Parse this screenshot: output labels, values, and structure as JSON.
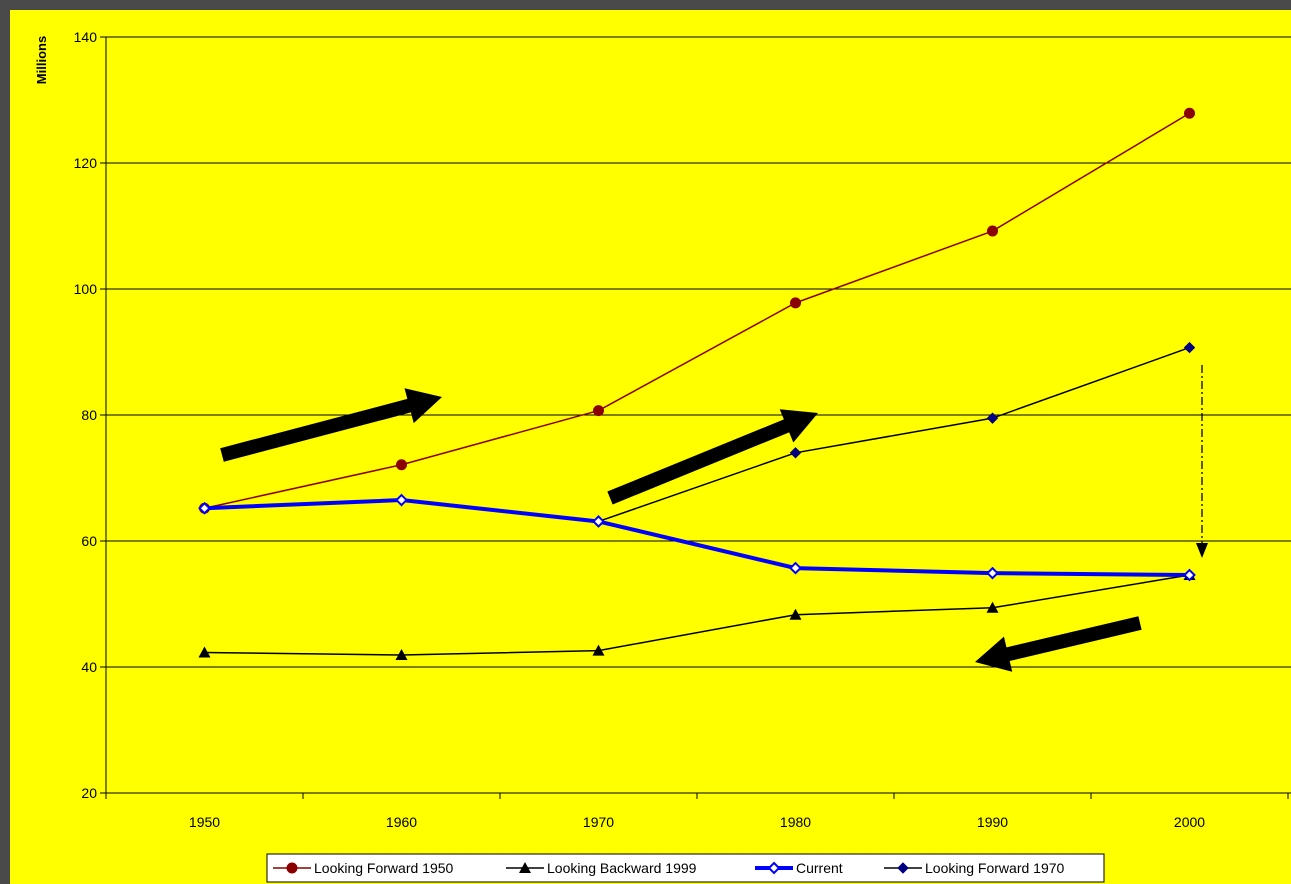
{
  "chart_data": {
    "type": "line",
    "title": "",
    "xlabel": "",
    "ylabel": "Millions",
    "ylim": [
      20,
      140
    ],
    "yticks": [
      20,
      40,
      60,
      80,
      100,
      120,
      140
    ],
    "categories": [
      "1950",
      "1960",
      "1970",
      "1980",
      "1990",
      "2000"
    ],
    "grid": "horizontal",
    "legend_position": "bottom",
    "series": [
      {
        "name": "Looking Forward 1950",
        "color": "#8b0000",
        "marker": "circle",
        "values": [
          65.2,
          72.1,
          80.7,
          97.8,
          109.2,
          127.9
        ]
      },
      {
        "name": "Looking Backward 1999",
        "color": "#000000",
        "marker": "triangle",
        "values": [
          42.3,
          41.9,
          42.6,
          48.3,
          49.4,
          54.6
        ]
      },
      {
        "name": "Current",
        "color": "#0000ff",
        "marker": "open-diamond",
        "values": [
          65.2,
          66.5,
          63.1,
          55.7,
          54.9,
          54.6
        ]
      },
      {
        "name": "Looking Forward 1970",
        "color": "#000000",
        "marker": "filled-diamond",
        "values": [
          null,
          null,
          63.1,
          74.0,
          79.5,
          90.7
        ]
      }
    ],
    "annotations": [
      "arrow-up-right",
      "arrow-up-right",
      "arrow-down-left",
      "dash-dot-down-arrow"
    ]
  }
}
